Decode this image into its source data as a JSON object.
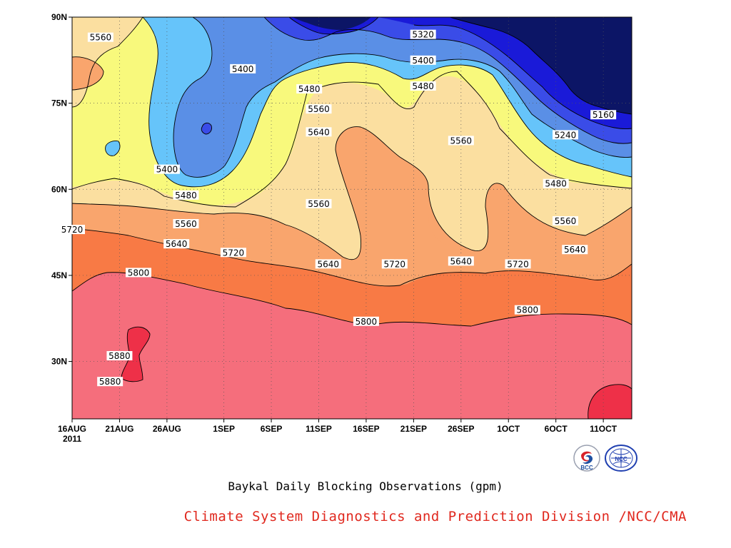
{
  "chart_data": {
    "type": "filled-contour",
    "caption": "Baykal Daily Blocking Observations (gpm)",
    "xlabel": "",
    "ylabel": "",
    "x_tick_labels": [
      "16AUG",
      "21AUG",
      "26AUG",
      "1SEP",
      "6SEP",
      "11SEP",
      "16SEP",
      "21SEP",
      "26SEP",
      "1OCT",
      "6OCT",
      "11OCT"
    ],
    "x_year_label": "2011",
    "y_tick_labels": [
      "30N",
      "45N",
      "60N",
      "75N",
      "90N"
    ],
    "y_values": [
      30,
      45,
      60,
      75,
      90
    ],
    "ylim": [
      20,
      90
    ],
    "contour_levels": [
      5160,
      5240,
      5320,
      5400,
      5480,
      5560,
      5640,
      5720,
      5800,
      5880
    ],
    "fill_colors": {
      "lt5160": "#0c1566",
      "5160_5240": "#1a1ad8",
      "5240_5320": "#3a4ce8",
      "5320_5400": "#5a8fe6",
      "5400_5480": "#66c4fa",
      "5480_5560": "#f8f97c",
      "5560_5640": "#fbdfa0",
      "5640_5720": "#f9a56d",
      "5720_5800": "#f87a45",
      "5800_5880": "#f56e7c",
      "gt5880": "#ee3048"
    },
    "contour_labels": [
      {
        "text": "5560",
        "date": "19AUG",
        "lat": 86.5
      },
      {
        "text": "5320",
        "date": "22SEP",
        "lat": 87
      },
      {
        "text": "5400",
        "date": "3SEP",
        "lat": 81
      },
      {
        "text": "5400",
        "date": "22SEP",
        "lat": 82.5
      },
      {
        "text": "5480",
        "date": "10SEP",
        "lat": 77.5
      },
      {
        "text": "5480",
        "date": "22SEP",
        "lat": 78
      },
      {
        "text": "5560",
        "date": "11SEP",
        "lat": 74
      },
      {
        "text": "5640",
        "date": "11SEP",
        "lat": 70
      },
      {
        "text": "5160",
        "date": "11OCT",
        "lat": 73
      },
      {
        "text": "5240",
        "date": "7OCT",
        "lat": 69.5
      },
      {
        "text": "5560",
        "date": "26SEP",
        "lat": 68.5
      },
      {
        "text": "5400",
        "date": "26AUG",
        "lat": 63.5
      },
      {
        "text": "5480",
        "date": "6OCT",
        "lat": 61
      },
      {
        "text": "5480",
        "date": "28AUG",
        "lat": 59
      },
      {
        "text": "5560",
        "date": "11SEP",
        "lat": 57.5
      },
      {
        "text": "5560",
        "date": "28AUG",
        "lat": 54
      },
      {
        "text": "5560",
        "date": "7OCT",
        "lat": 54.5
      },
      {
        "text": "5720",
        "date": "16AUG",
        "lat": 53
      },
      {
        "text": "5640",
        "date": "27AUG",
        "lat": 50.5
      },
      {
        "text": "5640",
        "date": "8OCT",
        "lat": 49.5
      },
      {
        "text": "5720",
        "date": "2SEP",
        "lat": 49
      },
      {
        "text": "5640",
        "date": "12SEP",
        "lat": 47
      },
      {
        "text": "5720",
        "date": "19SEP",
        "lat": 47
      },
      {
        "text": "5640",
        "date": "26SEP",
        "lat": 47.5
      },
      {
        "text": "5720",
        "date": "2OCT",
        "lat": 47
      },
      {
        "text": "5800",
        "date": "23AUG",
        "lat": 45.5
      },
      {
        "text": "5800",
        "date": "3OCT",
        "lat": 39
      },
      {
        "text": "5800",
        "date": "16SEP",
        "lat": 37
      },
      {
        "text": "5880",
        "date": "21AUG",
        "lat": 31
      },
      {
        "text": "5880",
        "date": "20AUG",
        "lat": 26.5
      }
    ],
    "grid": true
  },
  "caption": "Baykal Daily Blocking Observations (gpm)",
  "credit": "Climate System Diagnostics and Prediction Division /NCC/CMA",
  "logos": {
    "bcc_text": "BCC",
    "ncc_text": "NCC"
  }
}
